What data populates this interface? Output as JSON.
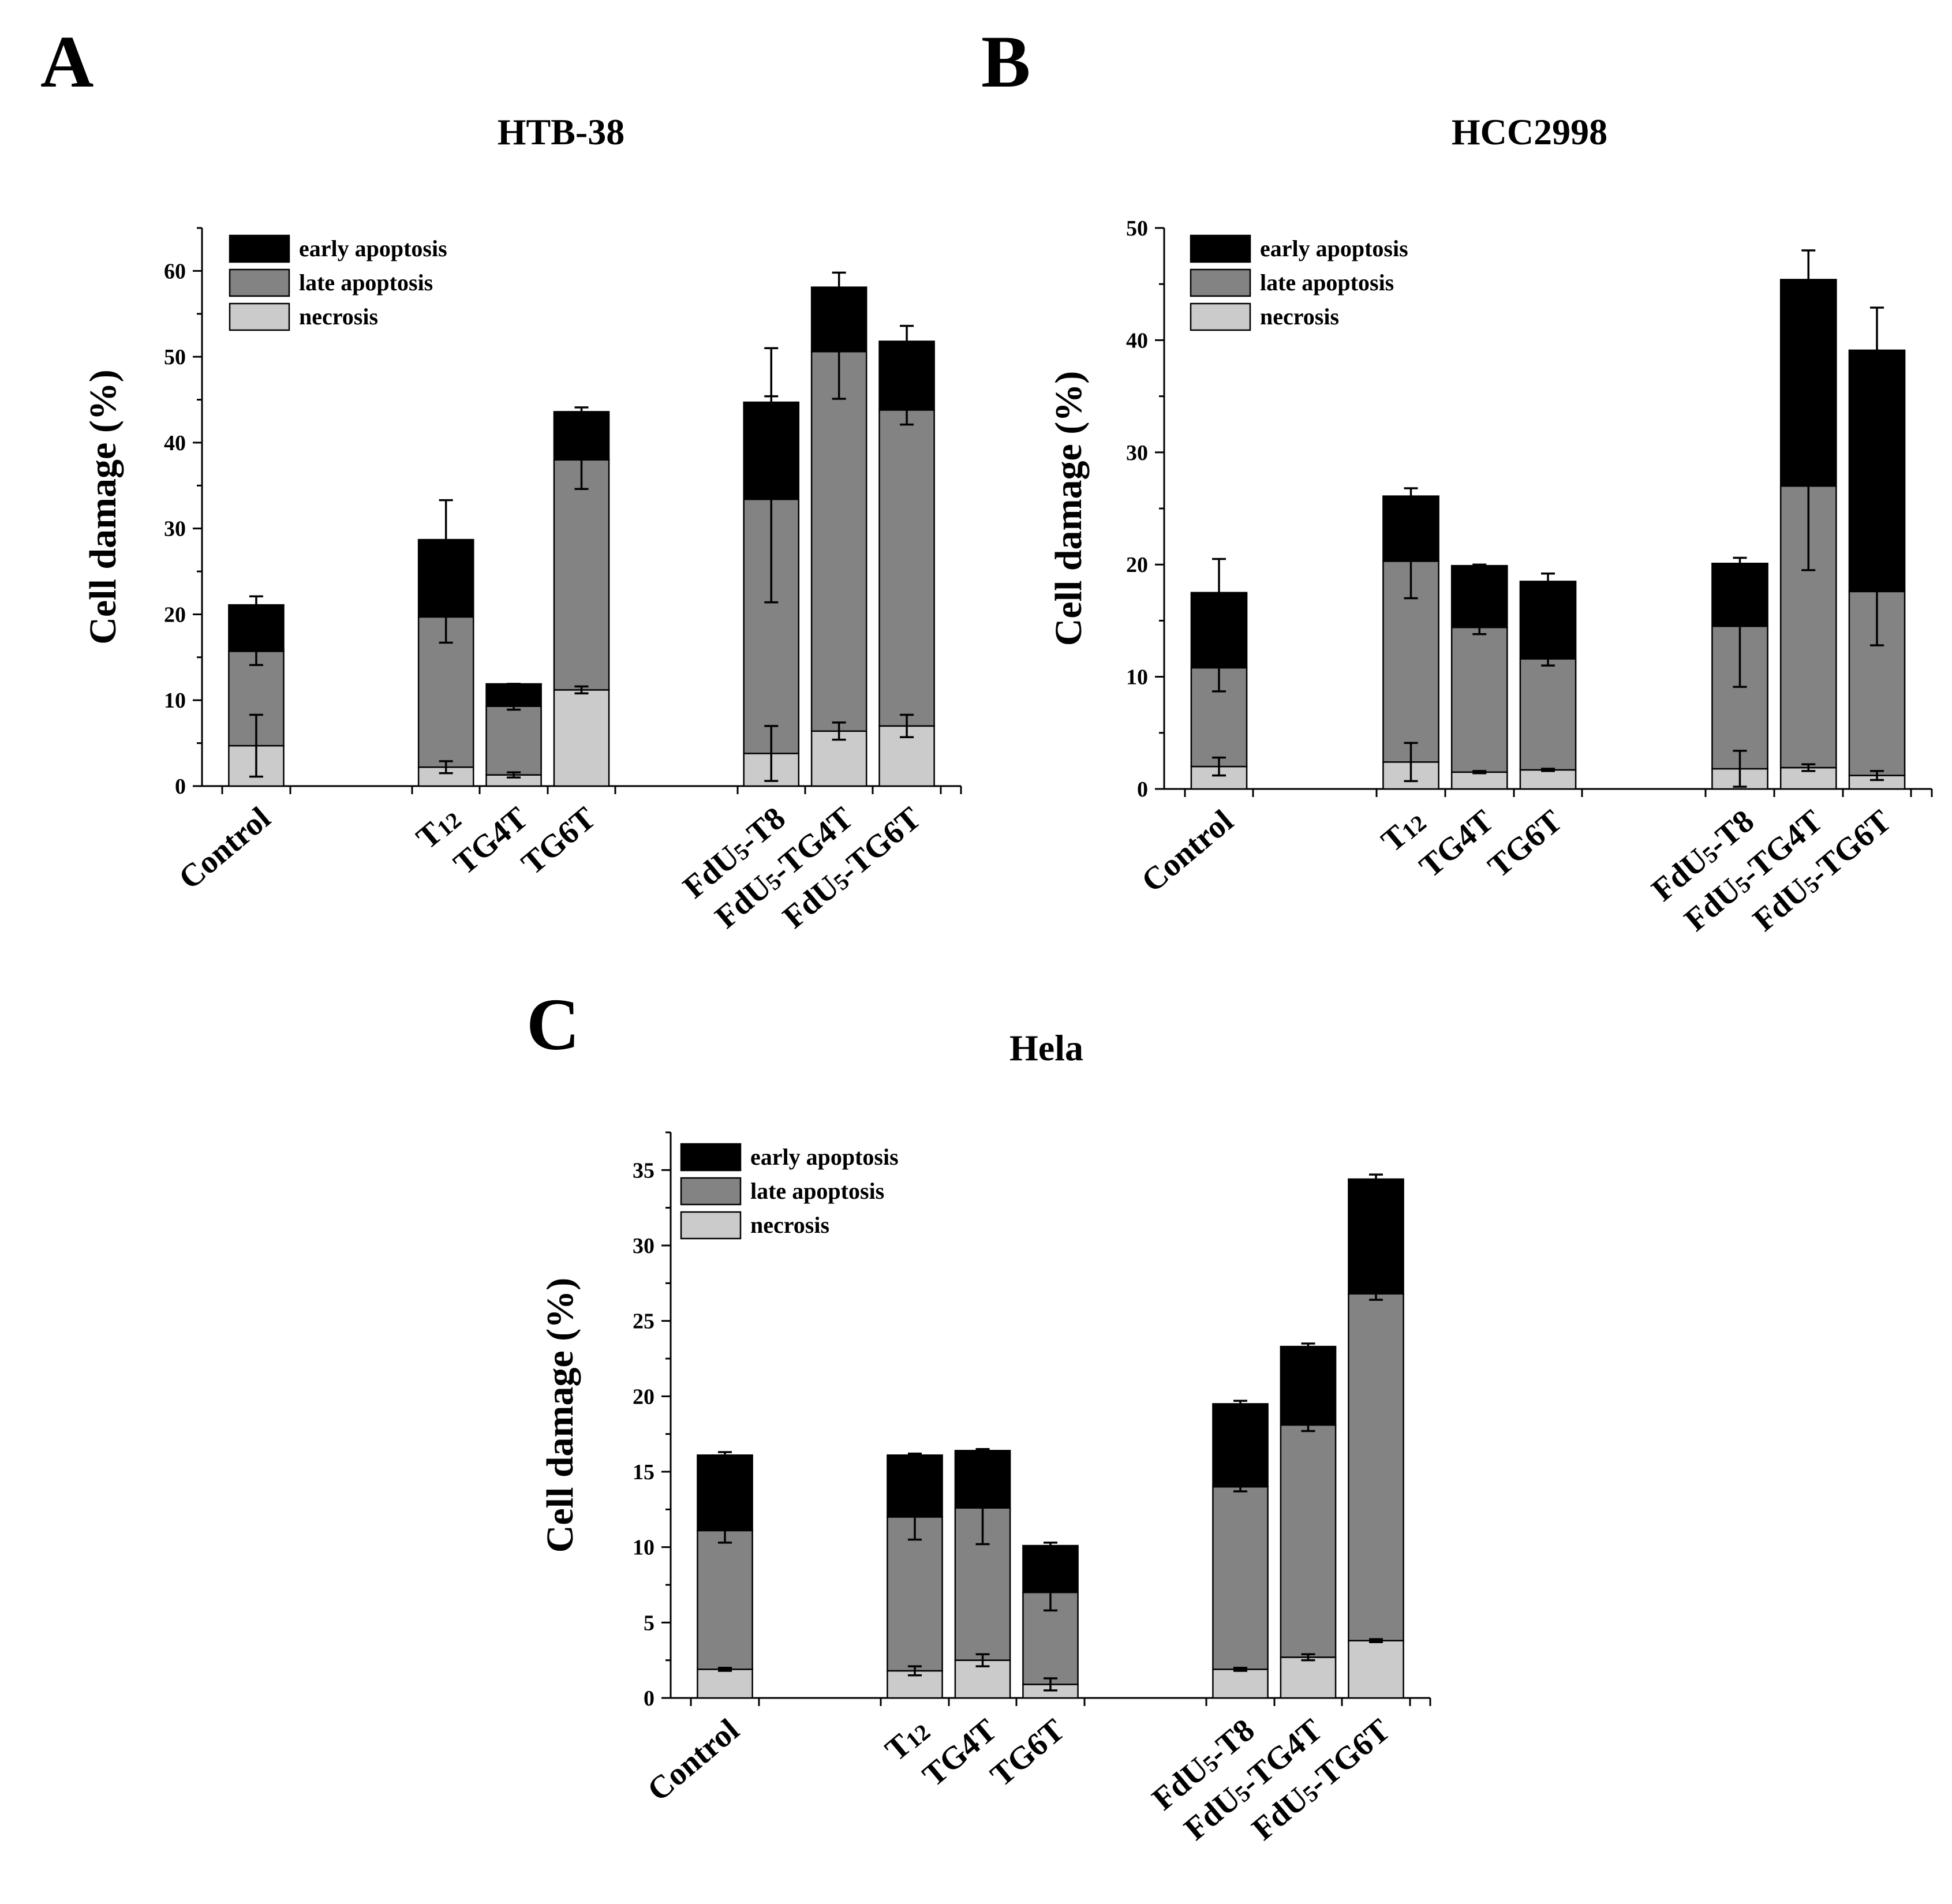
{
  "figure": {
    "panel_letters": [
      "A",
      "B",
      "C"
    ]
  },
  "chart_data": [
    {
      "type": "bar",
      "stacked": true,
      "panel": "A",
      "title": "HTB-38",
      "xlabel": "",
      "ylabel": "Cell damage (%)",
      "ylim": [
        0,
        65
      ],
      "yticks": [
        0,
        10,
        20,
        30,
        40,
        50,
        60
      ],
      "categories": [
        "Control",
        "T12",
        "TG4T",
        "TG6T",
        "FdU5-T8",
        "FdU5-TG4T",
        "FdU5-TG6T"
      ],
      "category_labels": [
        {
          "pre": "Control",
          "sub": "",
          "post": ""
        },
        {
          "pre": "T",
          "sub": "12",
          "post": ""
        },
        {
          "pre": "TG4T",
          "sub": "",
          "post": ""
        },
        {
          "pre": "TG6T",
          "sub": "",
          "post": ""
        },
        {
          "pre": "FdU",
          "sub": "5",
          "post": "-T8"
        },
        {
          "pre": "FdU",
          "sub": "5",
          "post": "-TG4T"
        },
        {
          "pre": "FdU",
          "sub": "5",
          "post": "-TG6T"
        }
      ],
      "groups": [
        [
          0
        ],
        [
          1,
          2,
          3
        ],
        [
          4,
          5,
          6
        ]
      ],
      "series": [
        {
          "name": "necrosis",
          "color": "#cbcbcb",
          "values": [
            4.7,
            2.2,
            1.3,
            11.2,
            3.8,
            6.4,
            7.0
          ],
          "errors": [
            3.6,
            0.7,
            0.3,
            0.4,
            3.2,
            1.0,
            1.3
          ]
        },
        {
          "name": "late apoptosis",
          "color": "#838383",
          "values": [
            11.0,
            17.5,
            8.0,
            26.8,
            29.6,
            44.2,
            36.8
          ],
          "errors": [
            1.6,
            3.0,
            0.4,
            3.4,
            12.0,
            5.5,
            1.7
          ]
        },
        {
          "name": "early apoptosis",
          "color": "#000000",
          "values": [
            5.4,
            9.0,
            2.6,
            5.6,
            11.3,
            7.5,
            8.0
          ],
          "errors": [
            1.0,
            4.6,
            0.0,
            0.5,
            6.3,
            1.7,
            1.8
          ]
        }
      ],
      "legend": [
        "early apoptosis",
        "late apoptosis",
        "necrosis"
      ],
      "legend_position": "top-left"
    },
    {
      "type": "bar",
      "stacked": true,
      "panel": "B",
      "title": "HCC2998",
      "xlabel": "",
      "ylabel": "Cell damage (%)",
      "ylim": [
        0,
        50
      ],
      "yticks": [
        0,
        10,
        20,
        30,
        40,
        50
      ],
      "categories": [
        "Control",
        "T12",
        "TG4T",
        "TG6T",
        "FdU5-T8",
        "FdU5-TG4T",
        "FdU5-TG6T"
      ],
      "category_labels": [
        {
          "pre": "Control",
          "sub": "",
          "post": ""
        },
        {
          "pre": "T",
          "sub": "12",
          "post": ""
        },
        {
          "pre": "TG4T",
          "sub": "",
          "post": ""
        },
        {
          "pre": "TG6T",
          "sub": "",
          "post": ""
        },
        {
          "pre": "FdU",
          "sub": "5",
          "post": "-T8"
        },
        {
          "pre": "FdU",
          "sub": "5",
          "post": "-TG4T"
        },
        {
          "pre": "FdU",
          "sub": "5",
          "post": "-TG6T"
        }
      ],
      "groups": [
        [
          0
        ],
        [
          1,
          2,
          3
        ],
        [
          4,
          5,
          6
        ]
      ],
      "series": [
        {
          "name": "necrosis",
          "color": "#cbcbcb",
          "values": [
            2.0,
            2.4,
            1.5,
            1.7,
            1.8,
            1.9,
            1.2
          ],
          "errors": [
            0.8,
            1.7,
            0.1,
            0.1,
            1.6,
            0.3,
            0.4
          ]
        },
        {
          "name": "late apoptosis",
          "color": "#838383",
          "values": [
            8.8,
            17.9,
            12.9,
            9.9,
            12.7,
            25.1,
            16.4
          ],
          "errors": [
            2.1,
            3.3,
            0.6,
            0.6,
            5.4,
            7.5,
            4.8
          ]
        },
        {
          "name": "early apoptosis",
          "color": "#000000",
          "values": [
            6.7,
            5.8,
            5.5,
            6.9,
            5.6,
            18.4,
            21.5
          ],
          "errors": [
            3.0,
            0.7,
            0.1,
            0.7,
            0.5,
            2.6,
            3.8
          ]
        }
      ],
      "legend": [
        "early apoptosis",
        "late apoptosis",
        "necrosis"
      ],
      "legend_position": "top-left"
    },
    {
      "type": "bar",
      "stacked": true,
      "panel": "C",
      "title": "Hela",
      "xlabel": "",
      "ylabel": "Cell damage (%)",
      "ylim": [
        0,
        37.5
      ],
      "yticks": [
        0,
        5,
        10,
        15,
        20,
        25,
        30,
        35
      ],
      "categories": [
        "Control",
        "T12",
        "TG4T",
        "TG6T",
        "FdU5-T8",
        "FdU5-TG4T",
        "FdU5-TG6T"
      ],
      "category_labels": [
        {
          "pre": "Control",
          "sub": "",
          "post": ""
        },
        {
          "pre": "T",
          "sub": "12",
          "post": ""
        },
        {
          "pre": "TG4T",
          "sub": "",
          "post": ""
        },
        {
          "pre": "TG6T",
          "sub": "",
          "post": ""
        },
        {
          "pre": "FdU",
          "sub": "5",
          "post": "-T8"
        },
        {
          "pre": "FdU",
          "sub": "5",
          "post": "-TG4T"
        },
        {
          "pre": "FdU",
          "sub": "5",
          "post": "-TG6T"
        }
      ],
      "groups": [
        [
          0
        ],
        [
          1,
          2,
          3
        ],
        [
          4,
          5,
          6
        ]
      ],
      "series": [
        {
          "name": "necrosis",
          "color": "#cbcbcb",
          "values": [
            1.9,
            1.8,
            2.5,
            0.9,
            1.9,
            2.7,
            3.8
          ],
          "errors": [
            0.1,
            0.3,
            0.4,
            0.4,
            0.1,
            0.2,
            0.1
          ]
        },
        {
          "name": "late apoptosis",
          "color": "#838383",
          "values": [
            9.2,
            10.2,
            10.1,
            6.1,
            12.1,
            15.4,
            23.0
          ],
          "errors": [
            0.8,
            1.5,
            2.4,
            1.2,
            0.3,
            0.4,
            0.4
          ]
        },
        {
          "name": "early apoptosis",
          "color": "#000000",
          "values": [
            5.0,
            4.1,
            3.8,
            3.1,
            5.5,
            5.2,
            7.6
          ],
          "errors": [
            0.2,
            0.1,
            0.1,
            0.2,
            0.2,
            0.2,
            0.3
          ]
        }
      ],
      "legend": [
        "early apoptosis",
        "late apoptosis",
        "necrosis"
      ],
      "legend_position": "top-left"
    }
  ]
}
